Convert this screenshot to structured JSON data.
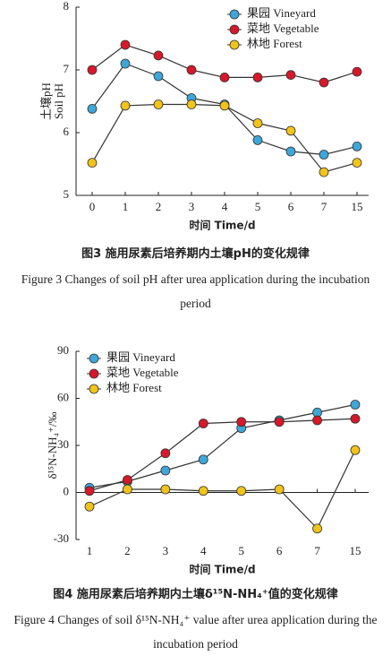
{
  "chart_data": [
    {
      "type": "line",
      "title": "图3 施用尿素后培养期内土壤pH的变化规律",
      "subtitle": "Figure 3 Changes of soil pH after urea application during the incubation period",
      "x_label": "时间 Time/d",
      "y_label": [
        "土壤pH",
        "Soil pH"
      ],
      "categories": [
        "0",
        "1",
        "2",
        "3",
        "4",
        "5",
        "6",
        "7",
        "15"
      ],
      "series": [
        {
          "name": "果园 Vineyard",
          "color": "#3ea6d8",
          "values": [
            6.38,
            7.1,
            6.9,
            6.55,
            6.45,
            5.88,
            5.7,
            5.65,
            5.78
          ]
        },
        {
          "name": "菜地 Vegetable",
          "color": "#d7182a",
          "values": [
            7.0,
            7.4,
            7.23,
            7.0,
            6.88,
            6.88,
            6.92,
            6.8,
            6.97
          ]
        },
        {
          "name": "林地 Forest",
          "color": "#f2c318",
          "values": [
            5.52,
            6.43,
            6.45,
            6.45,
            6.43,
            6.15,
            6.03,
            5.37,
            5.52
          ]
        }
      ],
      "ylim": [
        5,
        8
      ],
      "yticks": [
        5,
        6,
        7,
        8
      ],
      "legend": "upper right"
    },
    {
      "type": "line",
      "title": "图4 施用尿素后培养期内土壤δ¹⁵N-NH₄⁺值的变化规律",
      "subtitle": "Figure 4 Changes of soil δ¹⁵N-NH₄⁺ value after urea application during the incubation period",
      "x_label": "时间 Time/d",
      "y_label": [
        "δ¹⁵N-NH₄⁺/‰"
      ],
      "categories": [
        "1",
        "2",
        "3",
        "4",
        "5",
        "6",
        "7",
        "15"
      ],
      "series": [
        {
          "name": "果园 Vineyard",
          "color": "#3ea6d8",
          "values": [
            3,
            7,
            14,
            21,
            41,
            46,
            51,
            56
          ]
        },
        {
          "name": "菜地 Vegetable",
          "color": "#d7182a",
          "values": [
            1,
            8,
            25,
            44,
            45,
            45,
            46,
            47
          ]
        },
        {
          "name": "林地 Forest",
          "color": "#f2c318",
          "values": [
            -9,
            2,
            2,
            1,
            1,
            2,
            -23,
            27
          ]
        }
      ],
      "ylim": [
        -30,
        90
      ],
      "yticks": [
        -30,
        0,
        30,
        60,
        90
      ],
      "legend": "upper left"
    }
  ]
}
